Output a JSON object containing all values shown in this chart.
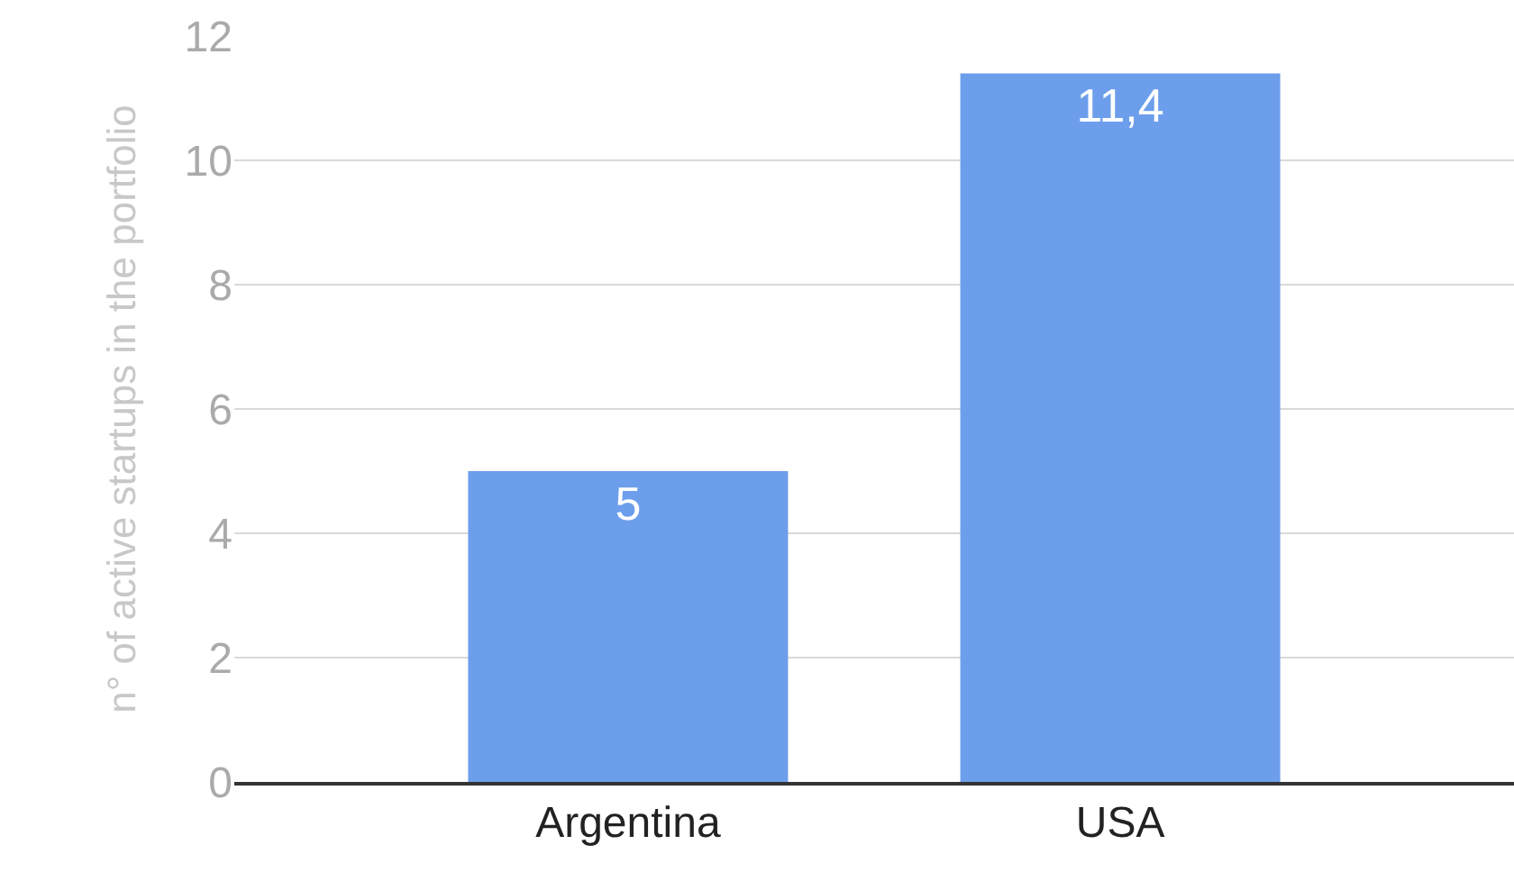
{
  "chart_data": {
    "type": "bar",
    "ylabel": "n° of active startups in the portfolio",
    "categories": [
      "Argentina",
      "USA"
    ],
    "values": [
      5,
      11.4
    ],
    "value_labels": [
      "5",
      "11,4"
    ],
    "color": "#6d9eeb",
    "ylim": [
      0,
      12
    ],
    "yticks": [
      0,
      2,
      4,
      6,
      8,
      10,
      12
    ],
    "grid": "y",
    "legend": false
  }
}
